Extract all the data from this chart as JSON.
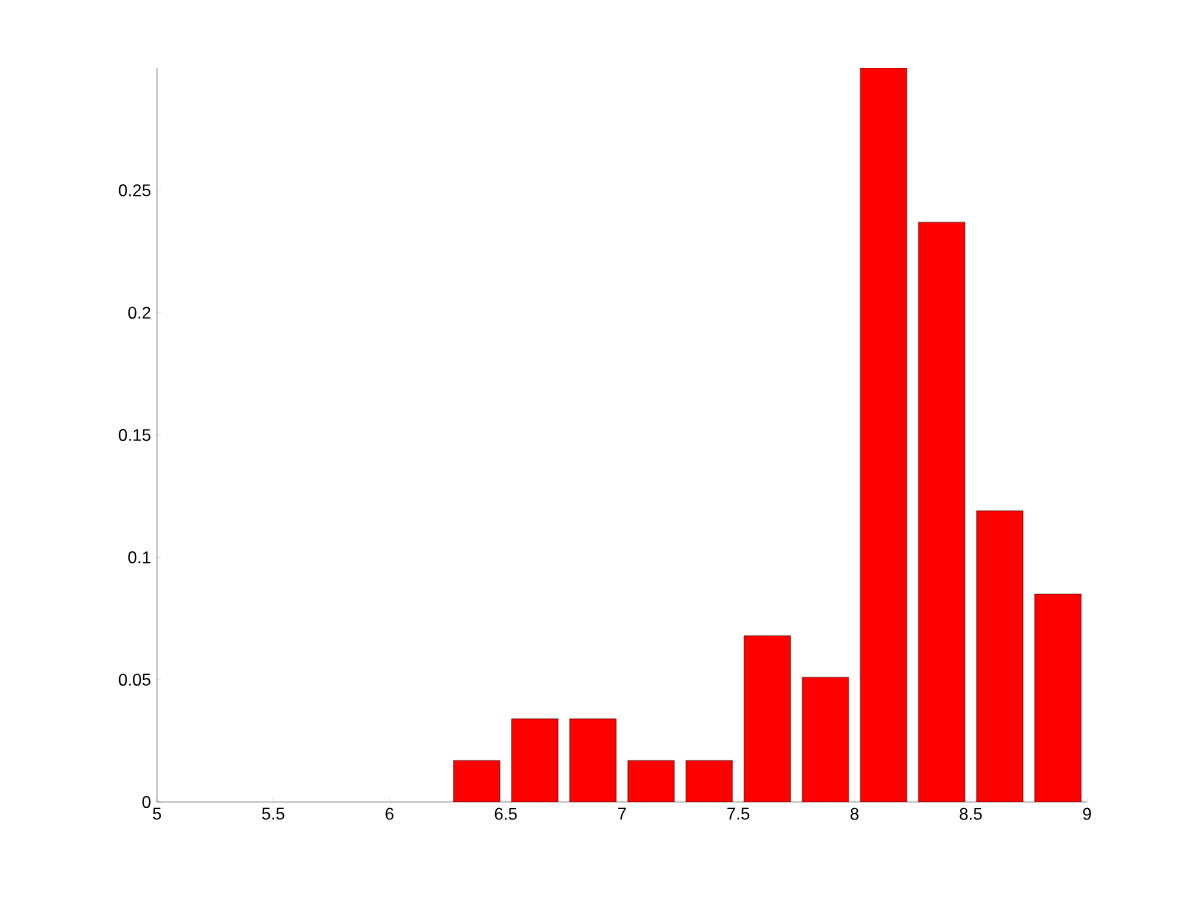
{
  "chart_data": {
    "type": "bar",
    "x": [
      6.375,
      6.625,
      6.875,
      7.125,
      7.375,
      7.625,
      7.875,
      8.125,
      8.375,
      8.625,
      8.875
    ],
    "values": [
      0.017,
      0.034,
      0.034,
      0.017,
      0.017,
      0.068,
      0.051,
      0.3,
      0.237,
      0.119,
      0.085
    ],
    "color": "#ff0000",
    "xlim": [
      5,
      9
    ],
    "xticks": [
      5,
      5.5,
      6,
      6.5,
      7,
      7.5,
      8,
      8.5,
      9
    ],
    "ylim": [
      0,
      0.3
    ],
    "yticks": [
      0,
      0.05,
      0.1,
      0.15,
      0.2,
      0.25
    ]
  }
}
